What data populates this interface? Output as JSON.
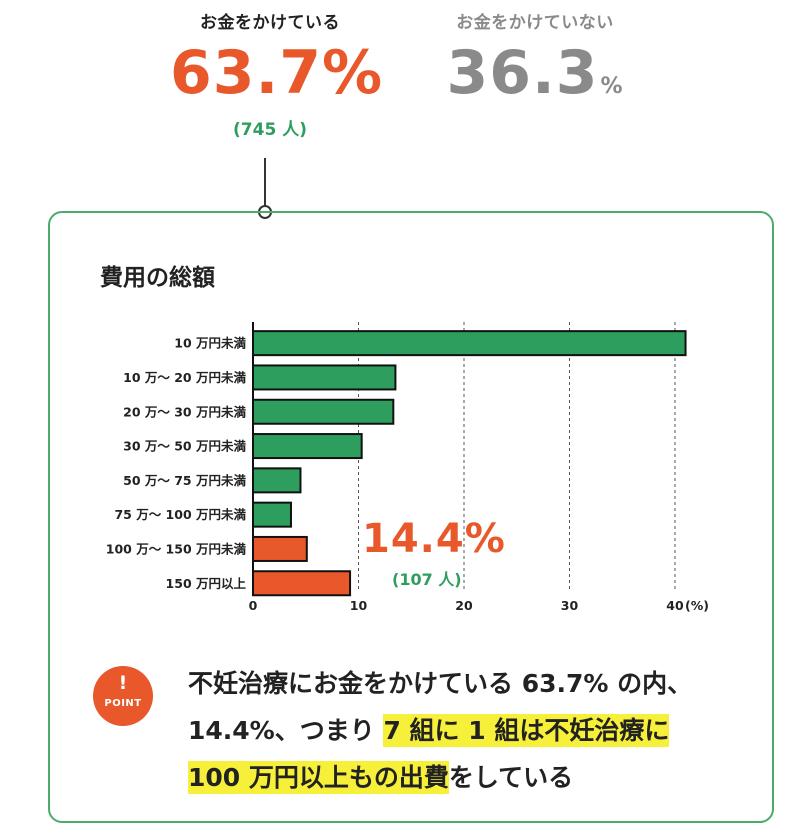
{
  "summary": {
    "yes": {
      "label": "お金をかけている",
      "value": "63.7",
      "unit": "%",
      "count": "(745 人)"
    },
    "no": {
      "label": "お金をかけていない",
      "value": "36.3",
      "unit": "%"
    }
  },
  "colors": {
    "green": "#2e9e5e",
    "orange": "#e8582a",
    "gray": "#8a8a8a",
    "highlight": "#f7f03a"
  },
  "chart_data": {
    "type": "bar",
    "orientation": "horizontal",
    "title": "費用の総額",
    "categories": [
      "10 万円未満",
      "10 万～ 20 万円未満",
      "20 万～ 30 万円未満",
      "30 万～ 50 万円未満",
      "50 万～ 75 万円未満",
      "75 万～ 100 万円未満",
      "100 万～ 150 万円未満",
      "150 万円以上"
    ],
    "values": [
      41.0,
      13.5,
      13.3,
      10.3,
      4.5,
      3.6,
      5.1,
      9.2
    ],
    "bar_colors": [
      "#2e9e5e",
      "#2e9e5e",
      "#2e9e5e",
      "#2e9e5e",
      "#2e9e5e",
      "#2e9e5e",
      "#e8582a",
      "#e8582a"
    ],
    "xlim": [
      0,
      40
    ],
    "xticks": [
      0,
      10,
      20,
      30,
      40
    ],
    "xtick_labels": [
      "0",
      "10",
      "20",
      "30",
      "40"
    ],
    "xunit": "(%)",
    "grid": "vertical dashed",
    "annotation": {
      "value": "14.4%",
      "count": "(107 人)"
    }
  },
  "point": {
    "badge_mark": "!",
    "badge_text": "POINT",
    "text_before": "不妊治療にお金をかけている 63.7% の内、14.4%、つまり ",
    "text_highlight_1": "7 組に 1 組は不妊治療に",
    "text_highlight_2": "100 万円以上もの出費",
    "text_after": "をしている"
  }
}
